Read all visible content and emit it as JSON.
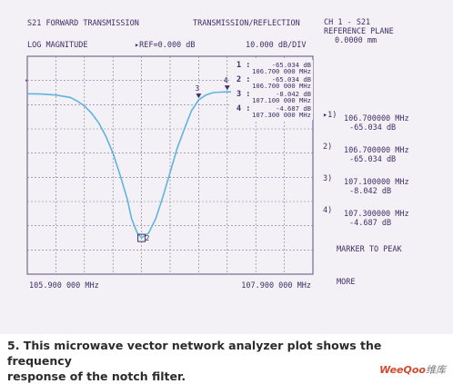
{
  "header": {
    "left_title": "S21 FORWARD TRANSMISSION",
    "right_title": "TRANSMISSION/REFLECTION",
    "format": "LOG MAGNITUDE",
    "ref": "▸REF=0.000 dB",
    "scale": "10.000 dB/DIV"
  },
  "side_panel": {
    "channel": "CH 1 - S21",
    "ref_plane_label": "REFERENCE PLANE",
    "ref_plane_value": "0.0000 mm",
    "markers": [
      {
        "id": "1",
        "active": true,
        "freq": "106.700000 MHz",
        "value": "-65.034 dB"
      },
      {
        "id": "2",
        "active": false,
        "freq": "106.700000 MHz",
        "value": "-65.034 dB"
      },
      {
        "id": "3",
        "active": false,
        "freq": "107.100000 MHz",
        "value": "-8.042 dB"
      },
      {
        "id": "4",
        "active": false,
        "freq": "107.300000 MHz",
        "value": "-4.687 dB"
      }
    ],
    "menu_1": "MARKER TO PEAK",
    "menu_2": "MORE"
  },
  "plot_readout": [
    {
      "id": "1",
      "value": "-65.034 dB",
      "freq": "106.700 000 MHz"
    },
    {
      "id": "2",
      "value": "-65.034 dB",
      "freq": "106.700 000 MHz"
    },
    {
      "id": "3",
      "value": "-8.042 dB",
      "freq": "107.100 000 MHz"
    },
    {
      "id": "4",
      "value": "-4.687 dB",
      "freq": "107.300 000 MHz"
    }
  ],
  "chart_data": {
    "type": "line",
    "title": "S21 FORWARD TRANSMISSION",
    "xlabel": "",
    "ylabel": "",
    "x_unit": "MHz",
    "y_unit": "dB",
    "xlim": [
      105.9,
      107.9
    ],
    "ylim": [
      -80,
      10
    ],
    "reference_level": 0,
    "grid": true,
    "x_tick_labels": [
      "105.900 000 MHz",
      "107.900 000 MHz"
    ],
    "series": [
      {
        "color": "#5fb3de",
        "x": [
          105.9,
          106.0,
          106.1,
          106.2,
          106.25,
          106.3,
          106.35,
          106.4,
          106.45,
          106.5,
          106.55,
          106.6,
          106.63,
          106.67,
          106.7,
          106.75,
          106.8,
          106.85,
          106.9,
          106.95,
          107.0,
          107.05,
          107.1,
          107.15,
          107.2,
          107.25,
          107.3,
          107.35,
          107.4,
          107.5,
          107.6,
          107.7,
          107.8,
          107.9
        ],
        "y": [
          -5.5,
          -5.6,
          -6.0,
          -7.0,
          -8.5,
          -10.5,
          -13.5,
          -17.5,
          -23,
          -30,
          -39,
          -49,
          -57,
          -63,
          -65.0,
          -63,
          -57,
          -48,
          -38,
          -28,
          -20,
          -12.5,
          -8.0,
          -6.0,
          -5.0,
          -4.8,
          -4.7,
          -4.7,
          -4.8,
          -5.1,
          -5.3,
          -5.4,
          -5.6,
          -5.7
        ]
      }
    ],
    "markers": [
      {
        "id": "1",
        "x": 106.7,
        "y": -65.034
      },
      {
        "id": "2",
        "x": 106.7,
        "y": -65.034
      },
      {
        "id": "3",
        "x": 107.1,
        "y": -8.042
      },
      {
        "id": "4",
        "x": 107.3,
        "y": -4.687
      }
    ]
  },
  "caption": {
    "line1": "5. This microwave vector network analyzer plot shows the frequency",
    "line2": "response of the notch filter."
  },
  "watermark": {
    "brand": "WeeQoo",
    "suffix": "维库"
  }
}
